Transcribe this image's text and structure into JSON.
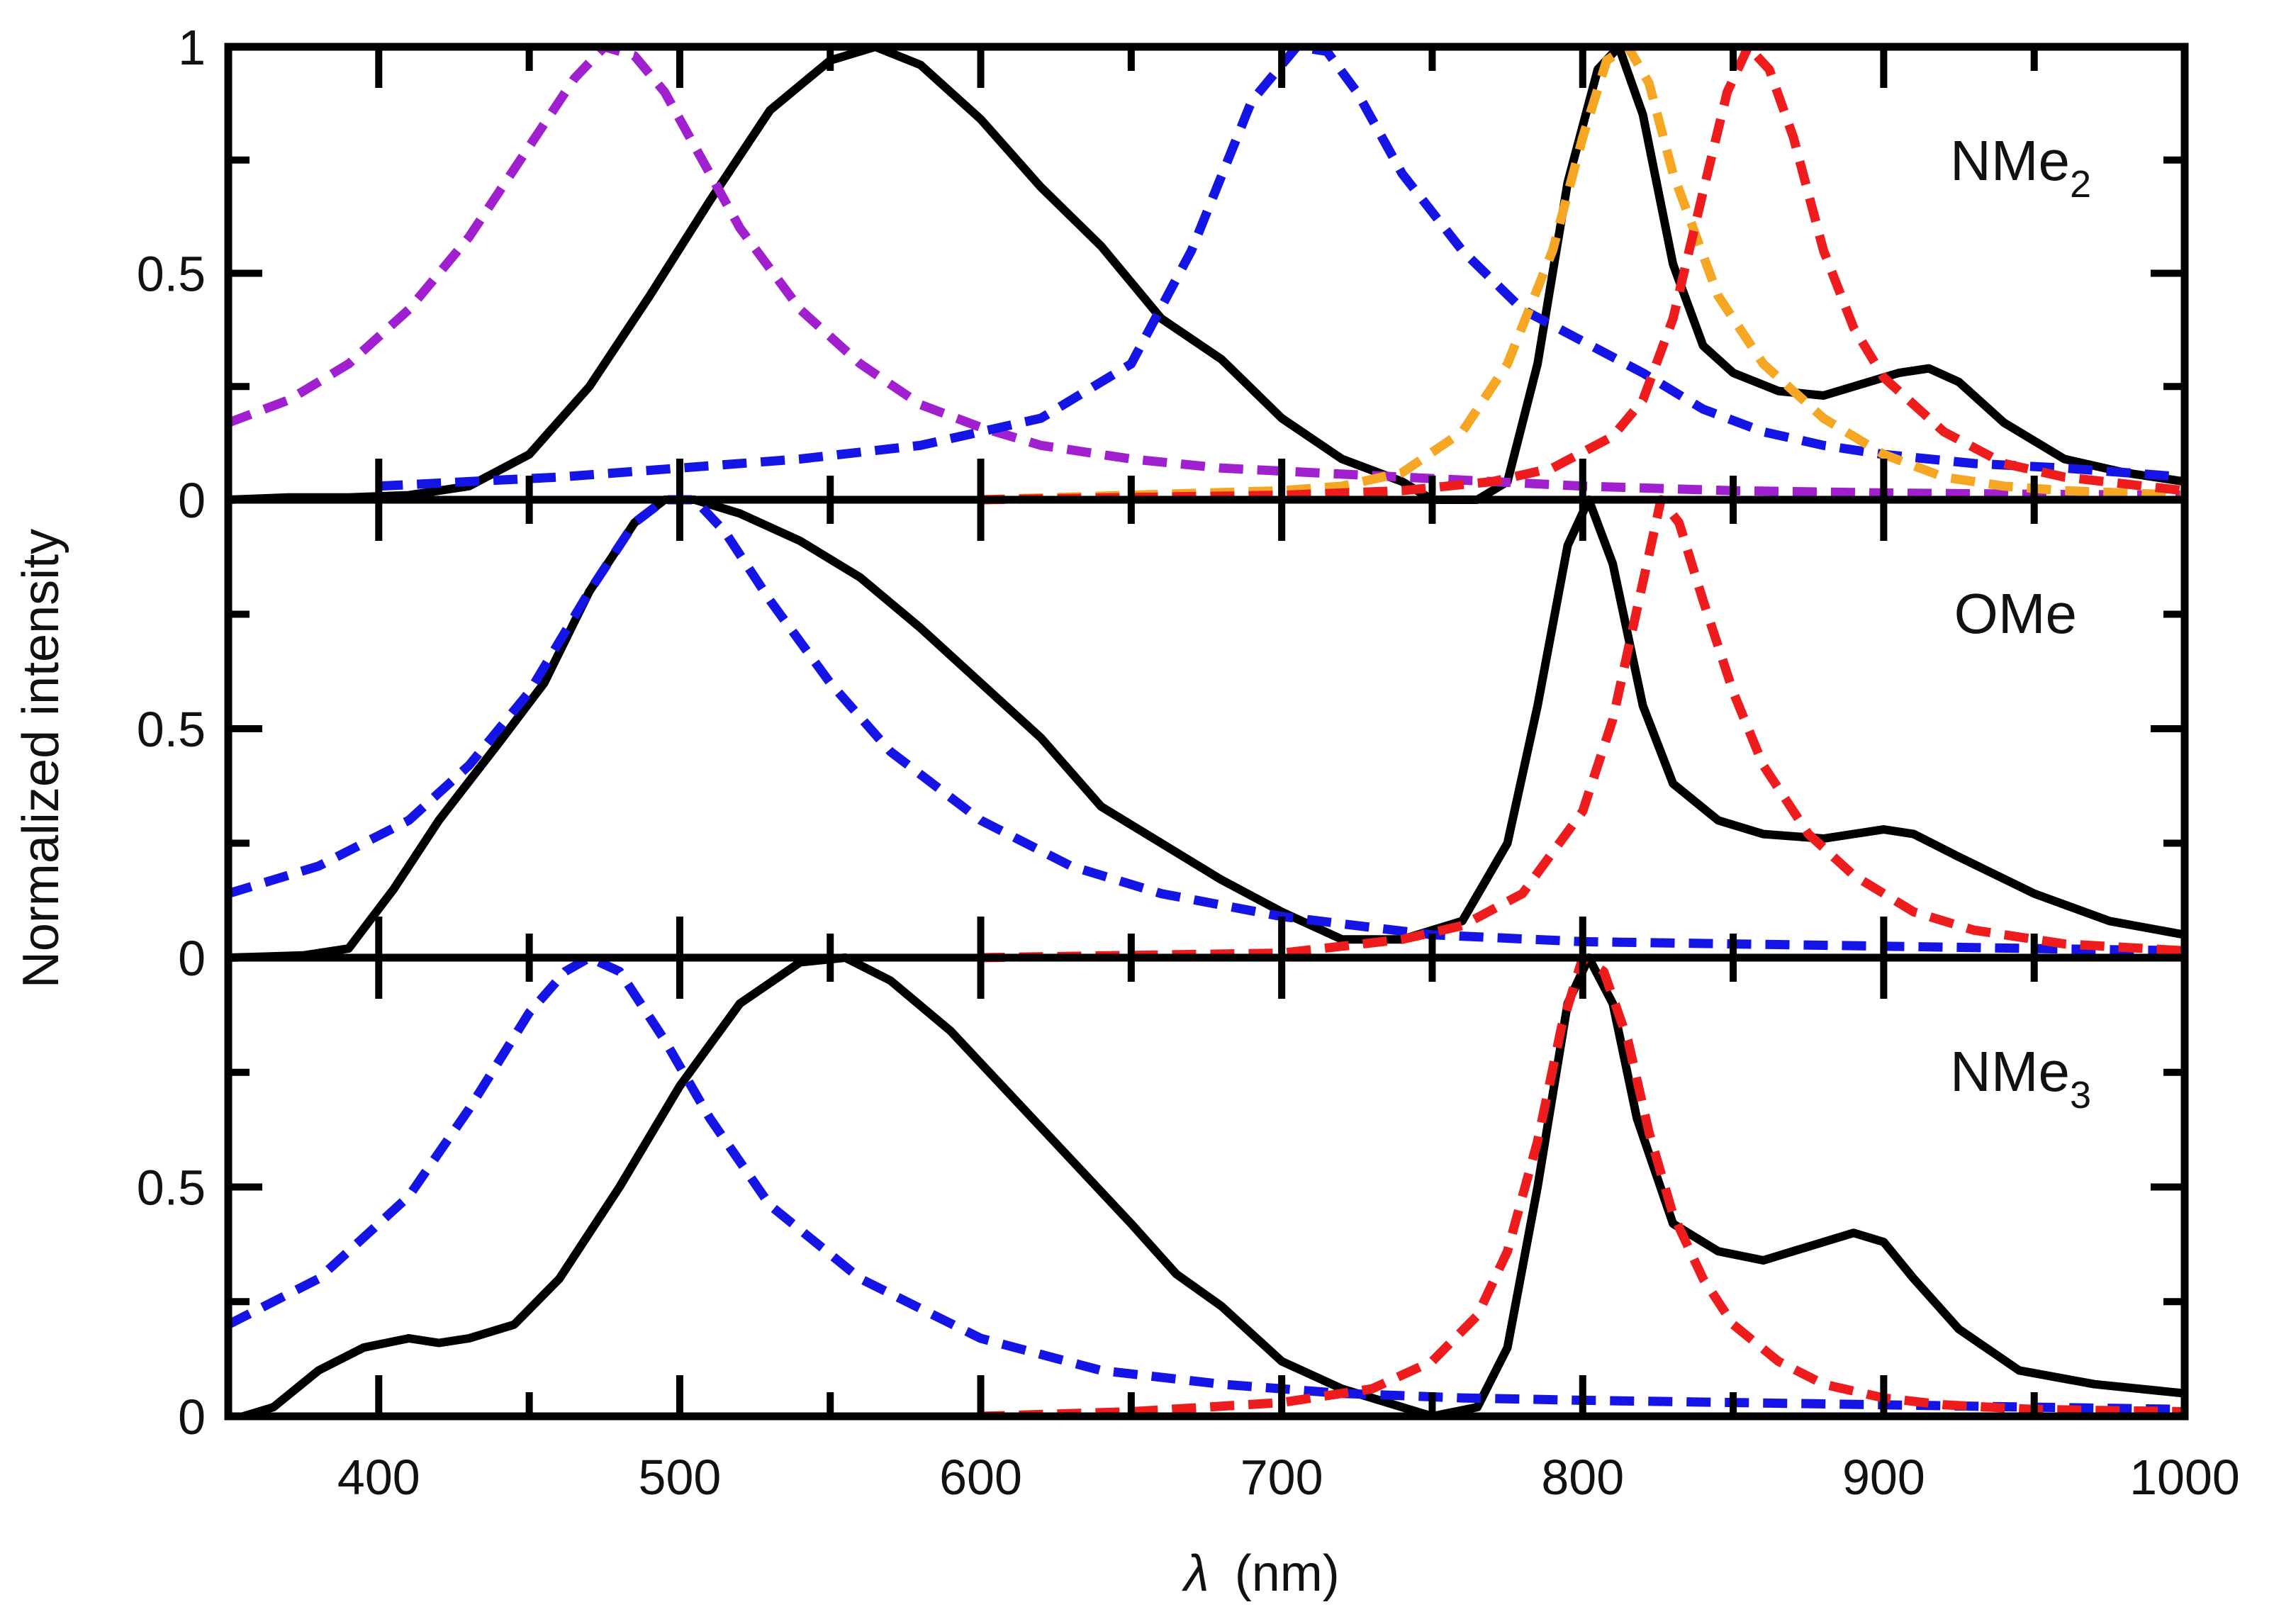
{
  "chart_data": {
    "type": "line",
    "title": "",
    "xlabel_symbol": "λ",
    "xlabel_unit": "(nm)",
    "ylabel": "Normalized intensity",
    "xlim": [
      350,
      1000
    ],
    "x_ticks": [
      400,
      500,
      600,
      700,
      800,
      900,
      1000
    ],
    "colors": {
      "emission": "#000000",
      "blue": "#1414e6",
      "red": "#ee1c1c",
      "orange": "#f5a623",
      "purple": "#a020d0"
    },
    "panels": [
      {
        "label_main": "NMe",
        "label_sub": "2",
        "ylim": [
          0,
          1
        ],
        "y_ticks": [
          "0",
          "0.5",
          "1"
        ],
        "series": [
          {
            "name": "emission",
            "style": "solid",
            "color": "#000000",
            "x": [
              350,
              370,
              390,
              410,
              430,
              450,
              470,
              490,
              510,
              530,
              550,
              565,
              580,
              600,
              620,
              640,
              660,
              680,
              700,
              720,
              740,
              750,
              765,
              775,
              785,
              795,
              805,
              812,
              820,
              830,
              840,
              850,
              865,
              880,
              895,
              905,
              915,
              925,
              940,
              960,
              980,
              1000
            ],
            "y": [
              0,
              0.005,
              0.005,
              0.01,
              0.03,
              0.1,
              0.25,
              0.45,
              0.66,
              0.86,
              0.97,
              1.0,
              0.96,
              0.84,
              0.69,
              0.56,
              0.4,
              0.31,
              0.18,
              0.09,
              0.04,
              0.0,
              0.0,
              0.04,
              0.3,
              0.7,
              0.95,
              1.0,
              0.85,
              0.52,
              0.34,
              0.28,
              0.24,
              0.23,
              0.26,
              0.28,
              0.29,
              0.26,
              0.17,
              0.09,
              0.06,
              0.04
            ]
          },
          {
            "name": "purple",
            "style": "dashed",
            "color": "#a020d0",
            "x": [
              350,
              370,
              390,
              410,
              430,
              450,
              465,
              475,
              485,
              495,
              505,
              520,
              540,
              560,
              580,
              600,
              620,
              650,
              680,
              710,
              740,
              770,
              800,
              850,
              900,
              950,
              1000
            ],
            "y": [
              0.17,
              0.22,
              0.3,
              0.42,
              0.58,
              0.78,
              0.93,
              1.0,
              0.98,
              0.9,
              0.78,
              0.6,
              0.42,
              0.3,
              0.21,
              0.16,
              0.12,
              0.09,
              0.07,
              0.06,
              0.05,
              0.04,
              0.03,
              0.02,
              0.015,
              0.012,
              0.01
            ]
          },
          {
            "name": "blue",
            "style": "dashed",
            "color": "#1414e6",
            "x": [
              400,
              430,
              460,
              500,
              540,
              580,
              620,
              650,
              670,
              690,
              705,
              715,
              725,
              740,
              760,
              780,
              800,
              820,
              840,
              860,
              880,
              900,
              930,
              960,
              1000
            ],
            "y": [
              0.03,
              0.04,
              0.05,
              0.07,
              0.09,
              0.12,
              0.18,
              0.3,
              0.55,
              0.88,
              1.0,
              0.99,
              0.9,
              0.72,
              0.55,
              0.42,
              0.35,
              0.28,
              0.2,
              0.15,
              0.12,
              0.1,
              0.08,
              0.07,
              0.05
            ]
          },
          {
            "name": "orange",
            "style": "dashed",
            "color": "#f5a623",
            "x": [
              600,
              650,
              700,
              720,
              740,
              760,
              775,
              790,
              800,
              808,
              815,
              822,
              830,
              845,
              860,
              880,
              900,
              920,
              940,
              960,
              1000
            ],
            "y": [
              0.0,
              0.01,
              0.02,
              0.03,
              0.06,
              0.15,
              0.3,
              0.55,
              0.8,
              0.97,
              1.0,
              0.92,
              0.72,
              0.45,
              0.3,
              0.18,
              0.1,
              0.05,
              0.03,
              0.02,
              0.01
            ]
          },
          {
            "name": "red",
            "style": "dashed",
            "color": "#ee1c1c",
            "x": [
              600,
              650,
              700,
              740,
              770,
              790,
              810,
              820,
              830,
              840,
              848,
              855,
              862,
              870,
              880,
              890,
              900,
              920,
              940,
              960,
              1000
            ],
            "y": [
              0.0,
              0.005,
              0.01,
              0.02,
              0.04,
              0.07,
              0.14,
              0.22,
              0.4,
              0.68,
              0.9,
              1.0,
              0.95,
              0.8,
              0.55,
              0.38,
              0.27,
              0.15,
              0.08,
              0.05,
              0.02
            ]
          }
        ]
      },
      {
        "label_main": "OMe",
        "label_sub": "",
        "ylim": [
          0,
          1
        ],
        "y_ticks": [
          "0",
          "0.5",
          ""
        ],
        "series": [
          {
            "name": "emission",
            "style": "solid",
            "color": "#000000",
            "x": [
              350,
              375,
              390,
              405,
              420,
              440,
              455,
              470,
              485,
              495,
              505,
              520,
              540,
              560,
              580,
              600,
              620,
              640,
              660,
              680,
              700,
              720,
              740,
              760,
              775,
              785,
              795,
              802,
              810,
              820,
              830,
              845,
              860,
              880,
              900,
              910,
              925,
              950,
              975,
              1000
            ],
            "y": [
              0,
              0.005,
              0.02,
              0.15,
              0.3,
              0.47,
              0.6,
              0.8,
              0.95,
              1.0,
              1.0,
              0.97,
              0.91,
              0.83,
              0.72,
              0.6,
              0.48,
              0.33,
              0.25,
              0.17,
              0.1,
              0.04,
              0.04,
              0.08,
              0.25,
              0.55,
              0.9,
              1.0,
              0.86,
              0.55,
              0.38,
              0.3,
              0.27,
              0.26,
              0.28,
              0.27,
              0.22,
              0.14,
              0.08,
              0.05
            ]
          },
          {
            "name": "blue",
            "style": "dashed",
            "color": "#1414e6",
            "x": [
              350,
              380,
              410,
              430,
              450,
              470,
              485,
              495,
              505,
              515,
              530,
              550,
              570,
              600,
              630,
              660,
              700,
              750,
              800,
              850,
              900,
              950,
              1000
            ],
            "y": [
              0.14,
              0.2,
              0.3,
              0.42,
              0.58,
              0.8,
              0.95,
              1.0,
              1.0,
              0.93,
              0.78,
              0.6,
              0.45,
              0.3,
              0.2,
              0.14,
              0.09,
              0.05,
              0.035,
              0.03,
              0.025,
              0.02,
              0.015
            ]
          },
          {
            "name": "red",
            "style": "dashed",
            "color": "#ee1c1c",
            "x": [
              600,
              650,
              700,
              740,
              760,
              780,
              800,
              810,
              820,
              826,
              832,
              840,
              850,
              860,
              875,
              890,
              910,
              930,
              960,
              1000
            ],
            "y": [
              0.0,
              0.005,
              0.01,
              0.04,
              0.07,
              0.14,
              0.32,
              0.52,
              0.82,
              1.0,
              0.95,
              0.78,
              0.58,
              0.42,
              0.27,
              0.18,
              0.1,
              0.06,
              0.03,
              0.015
            ]
          }
        ]
      },
      {
        "label_main": "NMe",
        "label_sub": "3",
        "ylim": [
          0,
          1
        ],
        "y_ticks": [
          "0",
          "0.5",
          ""
        ],
        "series": [
          {
            "name": "emission",
            "style": "solid",
            "color": "#000000",
            "x": [
              355,
              365,
              380,
              395,
              410,
              420,
              430,
              445,
              460,
              480,
              500,
              520,
              540,
              555,
              570,
              590,
              610,
              630,
              650,
              665,
              680,
              700,
              720,
              740,
              750,
              765,
              775,
              785,
              795,
              802,
              810,
              818,
              830,
              845,
              860,
              875,
              890,
              900,
              910,
              925,
              945,
              970,
              1000
            ],
            "y": [
              0,
              0.02,
              0.1,
              0.15,
              0.17,
              0.16,
              0.17,
              0.2,
              0.3,
              0.5,
              0.72,
              0.9,
              0.99,
              1.0,
              0.95,
              0.84,
              0.7,
              0.56,
              0.42,
              0.31,
              0.24,
              0.12,
              0.06,
              0.02,
              0.0,
              0.02,
              0.15,
              0.5,
              0.9,
              1.0,
              0.9,
              0.65,
              0.42,
              0.36,
              0.34,
              0.37,
              0.4,
              0.38,
              0.3,
              0.19,
              0.1,
              0.07,
              0.05
            ]
          },
          {
            "name": "blue",
            "style": "dashed",
            "color": "#1414e6",
            "x": [
              350,
              380,
              410,
              430,
              450,
              462,
              470,
              480,
              495,
              510,
              530,
              560,
              600,
              640,
              680,
              720,
              760,
              800,
              850,
              900,
              950,
              1000
            ],
            "y": [
              0.2,
              0.3,
              0.48,
              0.67,
              0.88,
              0.97,
              1.0,
              0.97,
              0.82,
              0.65,
              0.46,
              0.3,
              0.17,
              0.1,
              0.07,
              0.05,
              0.04,
              0.035,
              0.03,
              0.025,
              0.02,
              0.015
            ]
          },
          {
            "name": "red",
            "style": "dashed",
            "color": "#ee1c1c",
            "x": [
              600,
              650,
              700,
              730,
              750,
              765,
              775,
              785,
              793,
              800,
              807,
              815,
              822,
              830,
              840,
              850,
              865,
              880,
              900,
              920,
              950,
              1000
            ],
            "y": [
              0.0,
              0.01,
              0.03,
              0.06,
              0.12,
              0.22,
              0.36,
              0.6,
              0.85,
              1.0,
              0.97,
              0.82,
              0.62,
              0.44,
              0.3,
              0.2,
              0.12,
              0.07,
              0.04,
              0.025,
              0.015,
              0.01
            ]
          }
        ]
      }
    ]
  }
}
